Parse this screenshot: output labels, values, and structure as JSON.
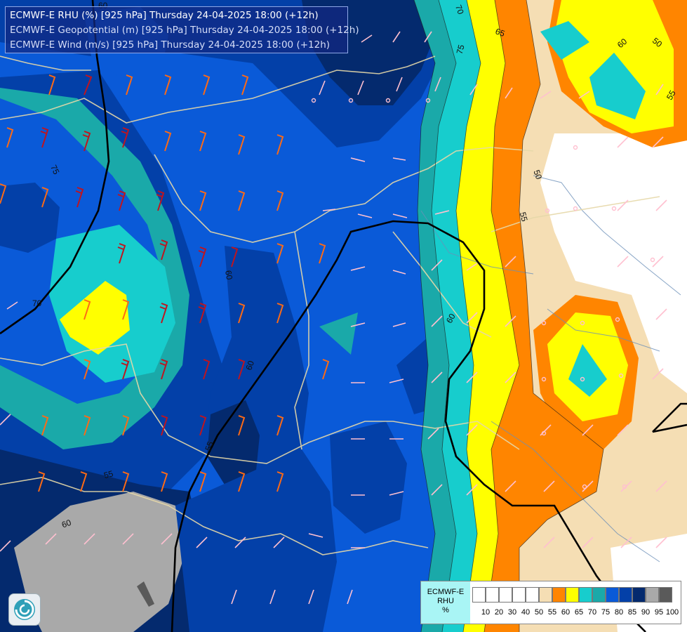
{
  "header": {
    "line1": "ECMWF-E RHU (%) [925 hPa] Thursday 24-04-2025 18:00 (+12h)",
    "line2": "ECMWF-E Geopotential (m) [925 hPa] Thursday 24-04-2025 18:00 (+12h)",
    "line3": "ECMWF-E Wind (m/s) [925 hPa] Thursday 24-04-2025 18:00 (+12h)"
  },
  "legend": {
    "label_lines": [
      "ECMWF-E",
      "RHU",
      "%"
    ],
    "ticks": [
      "10",
      "20",
      "30",
      "40",
      "50",
      "55",
      "60",
      "65",
      "70",
      "75",
      "80",
      "85",
      "90",
      "95",
      "100"
    ],
    "colors": [
      "#ffffff",
      "#ffffff",
      "#ffffff",
      "#ffffff",
      "#ffffff",
      "#f5deb4",
      "#ff8500",
      "#ffff00",
      "#17cdcd",
      "#1aa9a9",
      "#0a5ad8",
      "#0340a8",
      "#042a6e",
      "#a9a9a9",
      "#5a5a5a"
    ]
  },
  "contour_labels": [
    "70",
    "65",
    "50",
    "60",
    "55",
    "75",
    "50",
    "55",
    "75",
    "70",
    "60",
    "55",
    "60",
    "55",
    "60",
    "60",
    "60"
  ],
  "logo": {
    "icon": "ecmwf-swirl-logo"
  },
  "colors": {
    "rhu_85_90": "#0340a8",
    "rhu_80_85": "#0a5ad8",
    "rhu_90_95": "#042a6e",
    "rhu_70_75": "#1aa9a9",
    "rhu_65_70": "#17cdcd",
    "rhu_60_65": "#ffff00",
    "rhu_55_60": "#ff8500",
    "rhu_50_55": "#f5deb4",
    "rhu_below_50": "#ffffff",
    "rhu_95_100": "#a9a9a9",
    "geopotential_line": "#000000",
    "border_line": "#e6d8a8",
    "wind_strong": "#c0141e",
    "wind_moderate": "#ff6a14",
    "wind_light": "#ffc0d0"
  }
}
